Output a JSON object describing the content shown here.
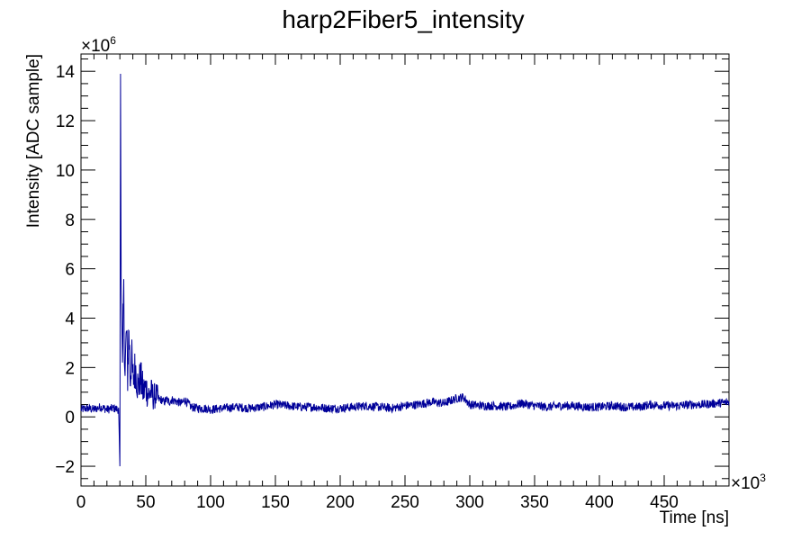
{
  "chart_data": {
    "type": "line",
    "title": "harp2Fiber5_intensity",
    "xlabel": "Time [ns]",
    "ylabel": "Intensity [ADC sample]",
    "x_multiplier": "×10",
    "x_multiplier_exp": "3",
    "y_multiplier": "×10",
    "y_multiplier_exp": "6",
    "xlim": [
      0,
      500
    ],
    "ylim": [
      -2.8,
      14.7
    ],
    "x_ticks": [
      0,
      50,
      100,
      150,
      200,
      250,
      300,
      350,
      400,
      450
    ],
    "x_tick_labels": [
      "0",
      "50",
      "100",
      "150",
      "200",
      "250",
      "300",
      "350",
      "400",
      "450"
    ],
    "y_ticks": [
      -2,
      0,
      2,
      4,
      6,
      8,
      10,
      12,
      14
    ],
    "y_tick_labels": [
      "−2",
      "0",
      "2",
      "4",
      "6",
      "8",
      "10",
      "12",
      "14"
    ],
    "line_color": "#000099",
    "grid": false,
    "series": [
      {
        "values_note": "",
        "x": [
          0,
          5,
          10,
          15,
          20,
          25,
          29,
          30,
          30.5,
          31,
          32,
          33,
          34,
          35,
          36,
          37,
          38,
          39,
          40,
          42,
          44,
          46,
          48,
          50,
          52,
          54,
          56,
          58,
          60,
          62,
          64,
          66,
          68,
          70,
          72,
          75,
          78,
          80,
          85,
          90,
          95,
          100,
          110,
          120,
          130,
          140,
          150,
          160,
          170,
          180,
          190,
          200,
          210,
          220,
          230,
          240,
          250,
          260,
          270,
          280,
          290,
          295,
          300,
          310,
          320,
          330,
          340,
          350,
          360,
          370,
          380,
          390,
          400,
          410,
          420,
          430,
          440,
          450,
          460,
          470,
          480,
          490,
          500
        ],
        "y": [
          0.3,
          0.35,
          0.3,
          0.4,
          0.3,
          0.35,
          0.3,
          -2.0,
          13.9,
          5.5,
          2.2,
          4.8,
          1.6,
          3.5,
          1.8,
          3.6,
          1.5,
          2.5,
          1.5,
          2.0,
          1.2,
          1.6,
          1.0,
          1.2,
          0.9,
          1.0,
          0.8,
          0.9,
          0.7,
          0.7,
          0.6,
          0.7,
          0.6,
          0.7,
          0.65,
          0.6,
          0.55,
          0.7,
          0.4,
          0.35,
          0.35,
          0.3,
          0.35,
          0.4,
          0.35,
          0.4,
          0.5,
          0.45,
          0.4,
          0.4,
          0.35,
          0.35,
          0.4,
          0.45,
          0.4,
          0.35,
          0.45,
          0.5,
          0.6,
          0.55,
          0.75,
          0.8,
          0.5,
          0.45,
          0.45,
          0.4,
          0.55,
          0.45,
          0.4,
          0.45,
          0.45,
          0.4,
          0.4,
          0.45,
          0.4,
          0.4,
          0.5,
          0.45,
          0.45,
          0.5,
          0.5,
          0.55,
          0.6
        ]
      }
    ]
  }
}
